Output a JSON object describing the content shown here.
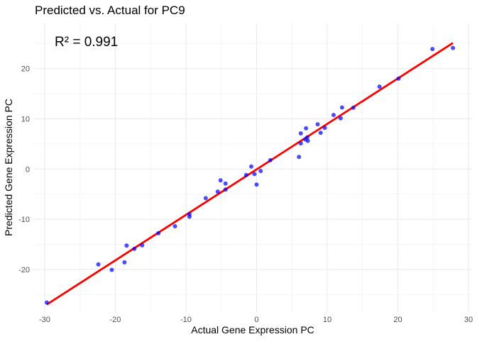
{
  "chart_data": {
    "type": "scatter",
    "title": "Predicted vs. Actual for PC9",
    "xlabel": "Actual Gene Expression PC",
    "ylabel": "Predicted Gene Expression PC",
    "annotation": "R² = 0.991",
    "xlim": [
      -31.5,
      30.5
    ],
    "ylim": [
      -28.5,
      29
    ],
    "x_ticks": [
      -30,
      -20,
      -10,
      0,
      10,
      20,
      30
    ],
    "y_ticks": [
      -20,
      -10,
      0,
      10,
      20
    ],
    "grid": true,
    "point_color": "#0000FF",
    "line_color": "#FF0000",
    "fit_line": {
      "slope": 0.906,
      "intercept": -0.08,
      "x_range": [
        -29.7,
        27.8
      ]
    },
    "points": [
      {
        "x": -29.7,
        "y": -26.6
      },
      {
        "x": -22.4,
        "y": -19.0
      },
      {
        "x": -20.5,
        "y": -20.1
      },
      {
        "x": -18.7,
        "y": -18.6
      },
      {
        "x": -18.4,
        "y": -15.25
      },
      {
        "x": -17.3,
        "y": -15.9
      },
      {
        "x": -16.2,
        "y": -15.2
      },
      {
        "x": -13.9,
        "y": -12.8
      },
      {
        "x": -11.55,
        "y": -11.4
      },
      {
        "x": -9.5,
        "y": -9.0
      },
      {
        "x": -9.5,
        "y": -9.5
      },
      {
        "x": -7.2,
        "y": -5.8
      },
      {
        "x": -5.5,
        "y": -4.5
      },
      {
        "x": -5.1,
        "y": -2.25
      },
      {
        "x": -4.4,
        "y": -2.9
      },
      {
        "x": -4.4,
        "y": -4.1
      },
      {
        "x": -1.47,
        "y": -1.2
      },
      {
        "x": -0.75,
        "y": 0.5
      },
      {
        "x": -0.3,
        "y": -1.0
      },
      {
        "x": 0.58,
        "y": -0.4
      },
      {
        "x": 0.0,
        "y": -3.1
      },
      {
        "x": 1.95,
        "y": 1.75
      },
      {
        "x": 6.0,
        "y": 2.4
      },
      {
        "x": 6.26,
        "y": 5.1
      },
      {
        "x": 7.25,
        "y": 5.6
      },
      {
        "x": 6.9,
        "y": 5.9
      },
      {
        "x": 7.18,
        "y": 6.3
      },
      {
        "x": 6.26,
        "y": 7.1
      },
      {
        "x": 7.0,
        "y": 8.1
      },
      {
        "x": 9.07,
        "y": 7.2
      },
      {
        "x": 9.65,
        "y": 8.2
      },
      {
        "x": 8.65,
        "y": 8.9
      },
      {
        "x": 11.9,
        "y": 10.1
      },
      {
        "x": 10.9,
        "y": 10.75
      },
      {
        "x": 13.7,
        "y": 12.2
      },
      {
        "x": 12.1,
        "y": 12.25
      },
      {
        "x": 17.4,
        "y": 16.4
      },
      {
        "x": 20.1,
        "y": 18.0
      },
      {
        "x": 24.9,
        "y": 23.9
      },
      {
        "x": 27.8,
        "y": 24.1
      }
    ]
  }
}
